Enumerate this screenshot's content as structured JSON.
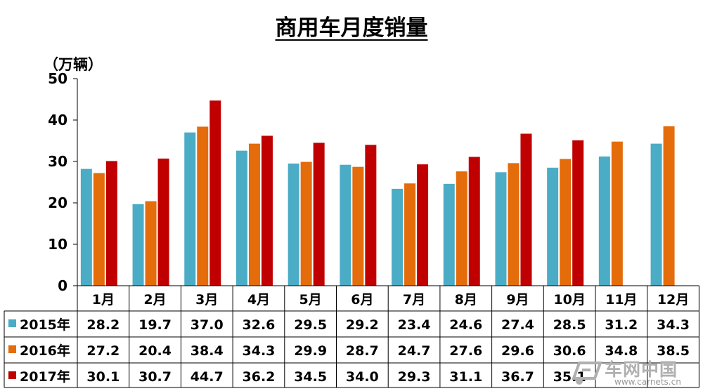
{
  "chart_data": {
    "type": "bar",
    "title": "商用车月度销量",
    "unit_label": "（万辆）",
    "categories": [
      "1月",
      "2月",
      "3月",
      "4月",
      "5月",
      "6月",
      "7月",
      "8月",
      "9月",
      "10月",
      "11月",
      "12月"
    ],
    "ylim": [
      0,
      50
    ],
    "yticks": [
      0,
      10,
      20,
      30,
      40,
      50
    ],
    "grid": false,
    "legend": "table-left",
    "series": [
      {
        "name": "2015年",
        "color": "#4bacc6",
        "values": [
          28.2,
          19.7,
          37.0,
          32.6,
          29.5,
          29.2,
          23.4,
          24.6,
          27.4,
          28.5,
          31.2,
          34.3
        ],
        "labels": [
          "28.2",
          "19.7",
          "37.0",
          "32.6",
          "29.5",
          "29.2",
          "23.4",
          "24.6",
          "27.4",
          "28.5",
          "31.2",
          "34.3"
        ]
      },
      {
        "name": "2016年",
        "color": "#e46c0a",
        "values": [
          27.2,
          20.4,
          38.4,
          34.3,
          29.9,
          28.7,
          24.7,
          27.6,
          29.6,
          30.6,
          34.8,
          38.5
        ],
        "labels": [
          "27.2",
          "20.4",
          "38.4",
          "34.3",
          "29.9",
          "28.7",
          "24.7",
          "27.6",
          "29.6",
          "30.6",
          "34.8",
          "38.5"
        ]
      },
      {
        "name": "2017年",
        "color": "#c00000",
        "values": [
          30.1,
          30.7,
          44.7,
          36.2,
          34.5,
          34.0,
          29.3,
          31.1,
          36.7,
          35.1,
          null,
          null
        ],
        "labels": [
          "30.1",
          "30.7",
          "44.7",
          "36.2",
          "34.5",
          "34.0",
          "29.3",
          "31.1",
          "36.7",
          "35.1",
          "",
          ""
        ]
      }
    ]
  },
  "watermark": {
    "name": "车网中国",
    "url": "www.carnets.cn"
  }
}
